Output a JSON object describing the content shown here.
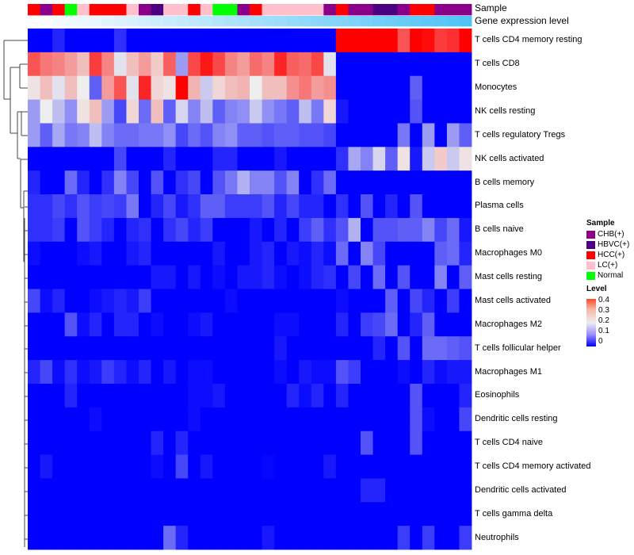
{
  "chart_data": {
    "type": "heatmap",
    "annotation_labels": {
      "sample": "Sample",
      "gene": "Gene expression level"
    },
    "rows": [
      "T cells CD4 memory resting",
      "T cells CD8",
      "Monocytes",
      "NK cells resting",
      "T cells regulatory  Tregs",
      "NK cells activated",
      "B cells memory",
      "Plasma cells",
      "B cells naive",
      "Macrophages M0",
      "Mast cells resting",
      "Mast cells activated",
      "Macrophages M2",
      "T cells follicular helper",
      "Macrophages M1",
      "Eosinophils",
      "Dendritic cells resting",
      "T cells CD4 naive",
      "T cells CD4 memory activated",
      "Dendritic cells activated",
      "T cells gamma delta",
      "Neutrophils"
    ],
    "samples": [
      "HCC(+)",
      "CHB(+)",
      "HCC(+)",
      "Normal",
      "LC(+)",
      "HCC(+)",
      "HCC(+)",
      "HCC(+)",
      "LC(+)",
      "CHB(+)",
      "HBVC(+)",
      "LC(+)",
      "LC(+)",
      "HCC(+)",
      "LC(+)",
      "Normal",
      "Normal",
      "CHB(+)",
      "HCC(+)",
      "LC(+)",
      "LC(+)",
      "LC(+)",
      "LC(+)",
      "LC(+)",
      "CHB(+)",
      "HCC(+)",
      "CHB(+)",
      "CHB(+)",
      "HBVC(+)",
      "HBVC(+)",
      "CHB(+)",
      "HCC(+)",
      "HCC(+)",
      "CHB(+)",
      "CHB(+)",
      "CHB(+)"
    ],
    "gene_expression_level": [
      0,
      0.03,
      0.06,
      0.09,
      0.11,
      0.14,
      0.17,
      0.2,
      0.23,
      0.26,
      0.29,
      0.31,
      0.34,
      0.37,
      0.4,
      0.43,
      0.46,
      0.49,
      0.51,
      0.54,
      0.57,
      0.6,
      0.63,
      0.66,
      0.69,
      0.71,
      0.74,
      0.77,
      0.8,
      0.83,
      0.86,
      0.89,
      0.91,
      0.94,
      0.97,
      1
    ],
    "values": [
      [
        0,
        0,
        0.03,
        0,
        0,
        0,
        0,
        0.04,
        0,
        0,
        0,
        0,
        0,
        0,
        0,
        0,
        0,
        0,
        0,
        0,
        0,
        0,
        0,
        0,
        0,
        0.4,
        0.4,
        0.4,
        0.4,
        0.4,
        0.33,
        0.4,
        0.39,
        0.35,
        0.36,
        0.4
      ],
      [
        0.33,
        0.3,
        0.29,
        0.27,
        0.24,
        0.35,
        0.29,
        0.19,
        0.24,
        0.27,
        0.23,
        0.32,
        0.13,
        0.34,
        0.38,
        0.34,
        0.29,
        0.27,
        0.31,
        0.29,
        0.37,
        0.32,
        0.31,
        0.34,
        0.19,
        0,
        0,
        0,
        0,
        0,
        0,
        0,
        0,
        0,
        0,
        0
      ],
      [
        0.21,
        0.24,
        0.19,
        0.24,
        0.2,
        0.08,
        0.27,
        0.33,
        0.19,
        0.37,
        0.22,
        0.21,
        0.4,
        0.25,
        0.17,
        0.22,
        0.24,
        0.25,
        0.2,
        0.24,
        0.24,
        0.28,
        0.3,
        0.27,
        0.28,
        0,
        0,
        0,
        0,
        0,
        0,
        0.08,
        0,
        0,
        0,
        0
      ],
      [
        0.13,
        0.2,
        0.16,
        0.12,
        0.21,
        0.24,
        0.13,
        0.06,
        0.22,
        0.09,
        0.24,
        0.08,
        0.18,
        0.11,
        0.16,
        0.08,
        0.11,
        0.12,
        0.17,
        0.12,
        0.1,
        0.08,
        0.16,
        0.1,
        0.22,
        0.02,
        0,
        0,
        0,
        0,
        0,
        0.07,
        0,
        0,
        0,
        0
      ],
      [
        0.13,
        0.08,
        0.14,
        0.1,
        0.11,
        0.16,
        0.11,
        0.09,
        0.09,
        0.1,
        0.1,
        0.12,
        0.06,
        0.09,
        0.07,
        0.11,
        0.12,
        0.08,
        0.08,
        0.07,
        0.08,
        0.08,
        0.07,
        0.07,
        0.06,
        0,
        0,
        0,
        0,
        0,
        0.1,
        0,
        0.13,
        0,
        0.13,
        0.08
      ],
      [
        0,
        0,
        0,
        0,
        0,
        0,
        0,
        0.06,
        0,
        0,
        0,
        0.03,
        0,
        0,
        0,
        0.03,
        0.03,
        0,
        0,
        0,
        0.02,
        0,
        0,
        0,
        0,
        0.04,
        0.14,
        0.11,
        0.18,
        0.08,
        0.21,
        0.02,
        0.17,
        0.23,
        0.17,
        0.21
      ],
      [
        0.03,
        0,
        0,
        0.09,
        0.03,
        0,
        0.04,
        0.11,
        0.06,
        0,
        0.07,
        0,
        0.04,
        0.06,
        0,
        0.07,
        0.1,
        0.15,
        0.11,
        0.11,
        0.07,
        0.11,
        0,
        0.04,
        0.09,
        0,
        0,
        0,
        0,
        0,
        0,
        0,
        0,
        0,
        0,
        0
      ],
      [
        0.04,
        0.04,
        0.06,
        0.04,
        0.07,
        0.05,
        0.06,
        0.05,
        0.1,
        0,
        0.03,
        0.06,
        0.02,
        0.04,
        0.08,
        0.08,
        0.05,
        0.05,
        0.05,
        0.07,
        0.03,
        0.06,
        0.03,
        0.03,
        0,
        0.04,
        0,
        0.07,
        0,
        0.03,
        0,
        0.07,
        0,
        0,
        0,
        0
      ],
      [
        0.04,
        0.04,
        0.05,
        0,
        0.07,
        0.05,
        0.03,
        0,
        0.03,
        0.04,
        0,
        0.04,
        0.06,
        0.03,
        0.05,
        0,
        0,
        0,
        0.02,
        0,
        0.03,
        0,
        0.05,
        0.08,
        0.04,
        0.07,
        0.15,
        0,
        0.07,
        0.07,
        0.08,
        0.08,
        0.11,
        0.06,
        0.09,
        0.02
      ],
      [
        0.01,
        0,
        0,
        0,
        0.01,
        0.02,
        0,
        0,
        0.02,
        0.03,
        0,
        0,
        0,
        0,
        0,
        0.02,
        0,
        0,
        0.02,
        0.03,
        0,
        0.02,
        0.01,
        0.03,
        0.01,
        0.09,
        0,
        0.11,
        0.06,
        0,
        0,
        0,
        0,
        0.08,
        0.09,
        0.03
      ],
      [
        0,
        0,
        0,
        0,
        0,
        0,
        0,
        0,
        0,
        0,
        0.02,
        0.02,
        0,
        0.02,
        0,
        0.01,
        0,
        0.02,
        0.02,
        0.03,
        0.01,
        0,
        0.01,
        0.03,
        0.04,
        0,
        0.06,
        0,
        0.09,
        0,
        0.07,
        0,
        0,
        0.11,
        0,
        0.08
      ],
      [
        0.06,
        0.01,
        0.03,
        0,
        0,
        0.01,
        0.02,
        0.03,
        0.02,
        0.05,
        0,
        0,
        0,
        0,
        0,
        0,
        0.01,
        0,
        0,
        0,
        0,
        0,
        0,
        0,
        0,
        0.01,
        0,
        0,
        0,
        0.08,
        0,
        0.06,
        0.03,
        0,
        0.05,
        0
      ],
      [
        0,
        0,
        0,
        0.07,
        0.01,
        0.03,
        0,
        0.03,
        0.03,
        0,
        0.01,
        0,
        0,
        0.01,
        0.02,
        0,
        0,
        0,
        0,
        0,
        0.01,
        0.01,
        0,
        0,
        0,
        0.03,
        0,
        0.05,
        0.06,
        0.09,
        0,
        0.03,
        0.08,
        0,
        0,
        0
      ],
      [
        0,
        0,
        0,
        0,
        0,
        0,
        0,
        0,
        0,
        0,
        0,
        0,
        0,
        0,
        0,
        0,
        0,
        0,
        0,
        0,
        0.02,
        0,
        0,
        0,
        0,
        0,
        0,
        0,
        0.03,
        0,
        0.07,
        0,
        0.09,
        0.09,
        0.08,
        0.07
      ],
      [
        0.03,
        0.06,
        0.01,
        0.04,
        0.01,
        0.02,
        0.05,
        0.03,
        0.01,
        0.03,
        0,
        0.02,
        0,
        0.01,
        0.01,
        0,
        0,
        0,
        0,
        0,
        0.01,
        0,
        0.02,
        0.01,
        0.01,
        0.07,
        0.05,
        0,
        0,
        0,
        0.01,
        0,
        0.03,
        0.01,
        0.02,
        0.02
      ],
      [
        0,
        0,
        0,
        0.03,
        0,
        0,
        0,
        0,
        0,
        0,
        0,
        0,
        0,
        0.01,
        0.01,
        0.02,
        0,
        0,
        0,
        0,
        0,
        0.03,
        0.01,
        0.03,
        0,
        0.03,
        0,
        0,
        0,
        0,
        0,
        0.07,
        0,
        0,
        0,
        0.03
      ],
      [
        0,
        0,
        0,
        0,
        0,
        0.01,
        0,
        0,
        0,
        0,
        0,
        0,
        0,
        0.01,
        0,
        0,
        0,
        0,
        0,
        0,
        0,
        0,
        0,
        0,
        0,
        0,
        0,
        0,
        0,
        0,
        0,
        0.07,
        0.01,
        0,
        0,
        0.06
      ],
      [
        0,
        0,
        0,
        0,
        0,
        0,
        0,
        0,
        0,
        0,
        0.03,
        0,
        0.03,
        0,
        0,
        0,
        0,
        0,
        0,
        0,
        0,
        0,
        0,
        0,
        0,
        0,
        0,
        0.07,
        0,
        0,
        0,
        0.07,
        0,
        0,
        0,
        0
      ],
      [
        0,
        0.02,
        0,
        0,
        0,
        0,
        0,
        0,
        0,
        0,
        0.01,
        0,
        0.06,
        0,
        0.02,
        0,
        0,
        0,
        0,
        0.005,
        0,
        0,
        0,
        0,
        0.02,
        0,
        0,
        0,
        0,
        0,
        0,
        0,
        0,
        0,
        0,
        0
      ],
      [
        0,
        0,
        0,
        0,
        0,
        0,
        0,
        0,
        0,
        0,
        0,
        0,
        0,
        0,
        0,
        0,
        0,
        0,
        0,
        0,
        0,
        0,
        0,
        0,
        0,
        0,
        0,
        0.03,
        0.03,
        0,
        0,
        0,
        0,
        0,
        0,
        0
      ],
      [
        0,
        0,
        0,
        0,
        0,
        0,
        0,
        0,
        0,
        0,
        0,
        0,
        0,
        0,
        0,
        0,
        0,
        0,
        0,
        0,
        0,
        0,
        0,
        0,
        0,
        0,
        0,
        0,
        0,
        0,
        0,
        0,
        0,
        0,
        0,
        0
      ],
      [
        0,
        0,
        0,
        0,
        0,
        0,
        0,
        0,
        0,
        0,
        0,
        0.09,
        0.03,
        0,
        0,
        0,
        0,
        0,
        0,
        0.02,
        0,
        0,
        0,
        0,
        0,
        0,
        0,
        0,
        0,
        0,
        0.05,
        0,
        0.05,
        0,
        0,
        0.05
      ]
    ],
    "color_range": [
      0,
      0.4
    ],
    "colors": {
      "low": "#0000ff",
      "mid": "#eeeeee",
      "high": "#ff0000"
    },
    "legend": {
      "sample_title": "Sample",
      "sample_items": [
        {
          "label": "CHB(+)",
          "color": "#8b008b"
        },
        {
          "label": "HBVC(+)",
          "color": "#4b0082"
        },
        {
          "label": "HCC(+)",
          "color": "#ff0000"
        },
        {
          "label": "LC(+)",
          "color": "#ffc0cb"
        },
        {
          "label": "Normal",
          "color": "#00ff00"
        }
      ],
      "level_title": "Level",
      "level_ticks": [
        "0.4",
        "0.3",
        "0.2",
        "0.1",
        "0"
      ]
    },
    "gene_bar_colors": {
      "low": "#ffffff",
      "high": "#4fc3f7"
    }
  }
}
